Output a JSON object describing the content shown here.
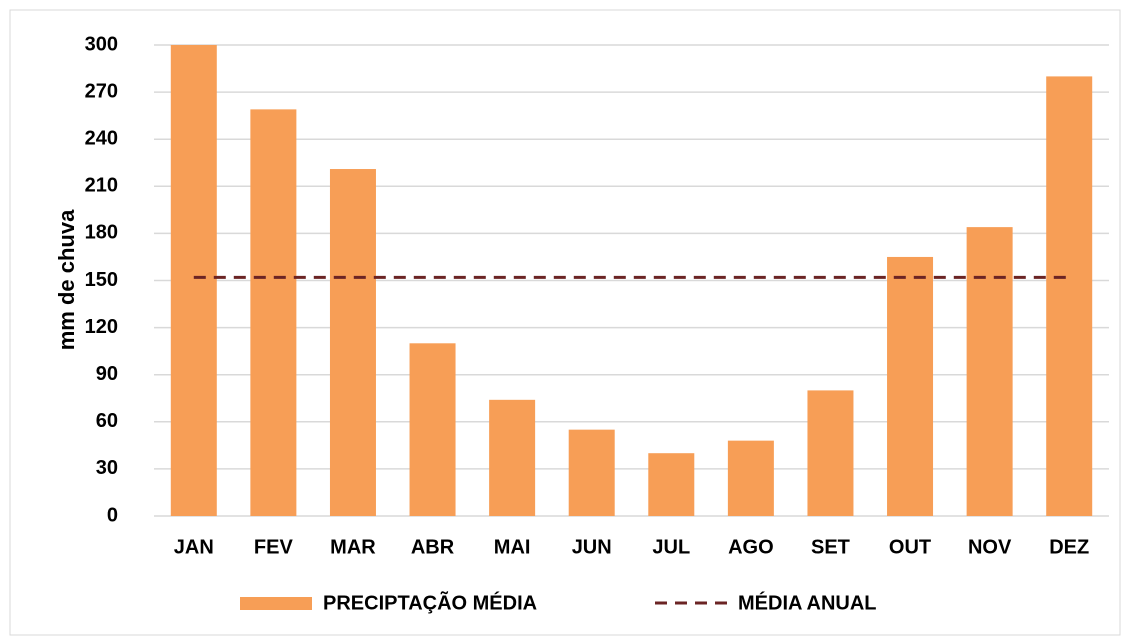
{
  "chart_data": {
    "type": "bar",
    "y_label": "mm  de chuva",
    "categories": [
      "JAN",
      "FEV",
      "MAR",
      "ABR",
      "MAI",
      "JUN",
      "JUL",
      "AGO",
      "SET",
      "OUT",
      "NOV",
      "DEZ"
    ],
    "series": [
      {
        "name": "PRECIPTAÇÃO MÉDIA",
        "type": "bar",
        "color": "#f79e56",
        "values": [
          300,
          259,
          221,
          110,
          74,
          55,
          40,
          48,
          80,
          165,
          184,
          280
        ]
      },
      {
        "name": "MÉDIA ANUAL",
        "type": "line",
        "color": "#6b2424",
        "values": [
          152,
          152,
          152,
          152,
          152,
          152,
          152,
          152,
          152,
          152,
          152,
          152
        ]
      }
    ],
    "ylim": [
      0,
      300
    ],
    "yticks": [
      0,
      30,
      60,
      90,
      120,
      150,
      180,
      210,
      240,
      270,
      300
    ],
    "grid": true,
    "legend": "bottom"
  }
}
